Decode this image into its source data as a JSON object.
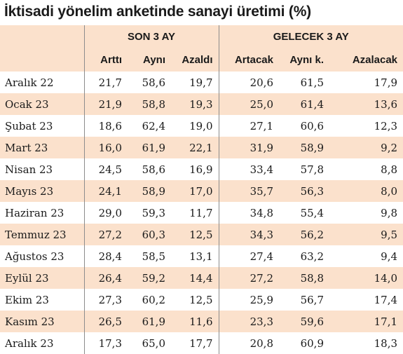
{
  "chart_data": {
    "type": "table",
    "title": "İktisadi yönelim anketinde sanayi üretimi (%)",
    "groups": [
      {
        "label": "SON 3 AY",
        "columns": [
          "Arttı",
          "Aynı",
          "Azaldı"
        ]
      },
      {
        "label": "GELECEK 3 AY",
        "columns": [
          "Artacak",
          "Aynı k.",
          "Azalacak"
        ]
      }
    ],
    "columns": [
      "Arttı",
      "Aynı",
      "Azaldı",
      "Artacak",
      "Aynı k.",
      "Azalacak"
    ],
    "rows": [
      {
        "label": "Aralık 22",
        "values": [
          "21,7",
          "58,6",
          "19,7",
          "20,6",
          "61,5",
          "17,9"
        ]
      },
      {
        "label": "Ocak 23",
        "values": [
          "21,9",
          "58,8",
          "19,3",
          "25,0",
          "61,4",
          "13,6"
        ]
      },
      {
        "label": "Şubat 23",
        "values": [
          "18,6",
          "62,4",
          "19,0",
          "27,1",
          "60,6",
          "12,3"
        ]
      },
      {
        "label": "Mart 23",
        "values": [
          "16,0",
          "61,9",
          "22,1",
          "31,9",
          "58,9",
          "9,2"
        ]
      },
      {
        "label": "Nisan 23",
        "values": [
          "24,5",
          "58,6",
          "16,9",
          "33,4",
          "57,8",
          "8,8"
        ]
      },
      {
        "label": "Mayıs 23",
        "values": [
          "24,1",
          "58,9",
          "17,0",
          "35,7",
          "56,3",
          "8,0"
        ]
      },
      {
        "label": "Haziran 23",
        "values": [
          "29,0",
          "59,3",
          "11,7",
          "34,8",
          "55,4",
          "9,8"
        ]
      },
      {
        "label": "Temmuz 23",
        "values": [
          "27,2",
          "60,3",
          "12,5",
          "34,3",
          "56,2",
          "9,5"
        ]
      },
      {
        "label": "Ağustos 23",
        "values": [
          "28,4",
          "58,5",
          "13,1",
          "27,4",
          "63,2",
          "9,4"
        ]
      },
      {
        "label": "Eylül 23",
        "values": [
          "26,4",
          "59,2",
          "14,4",
          "27,2",
          "58,8",
          "14,0"
        ]
      },
      {
        "label": "Ekim 23",
        "values": [
          "27,3",
          "60,2",
          "12,5",
          "25,9",
          "56,7",
          "17,4"
        ]
      },
      {
        "label": "Kasım 23",
        "values": [
          "26,5",
          "61,9",
          "11,6",
          "23,3",
          "59,6",
          "17,1"
        ]
      },
      {
        "label": "Aralık 23",
        "values": [
          "17,3",
          "65,0",
          "17,7",
          "20,8",
          "60,9",
          "18,3"
        ]
      }
    ],
    "colors": {
      "stripe": "#fbe1cc",
      "text": "#1a1a1a"
    }
  }
}
